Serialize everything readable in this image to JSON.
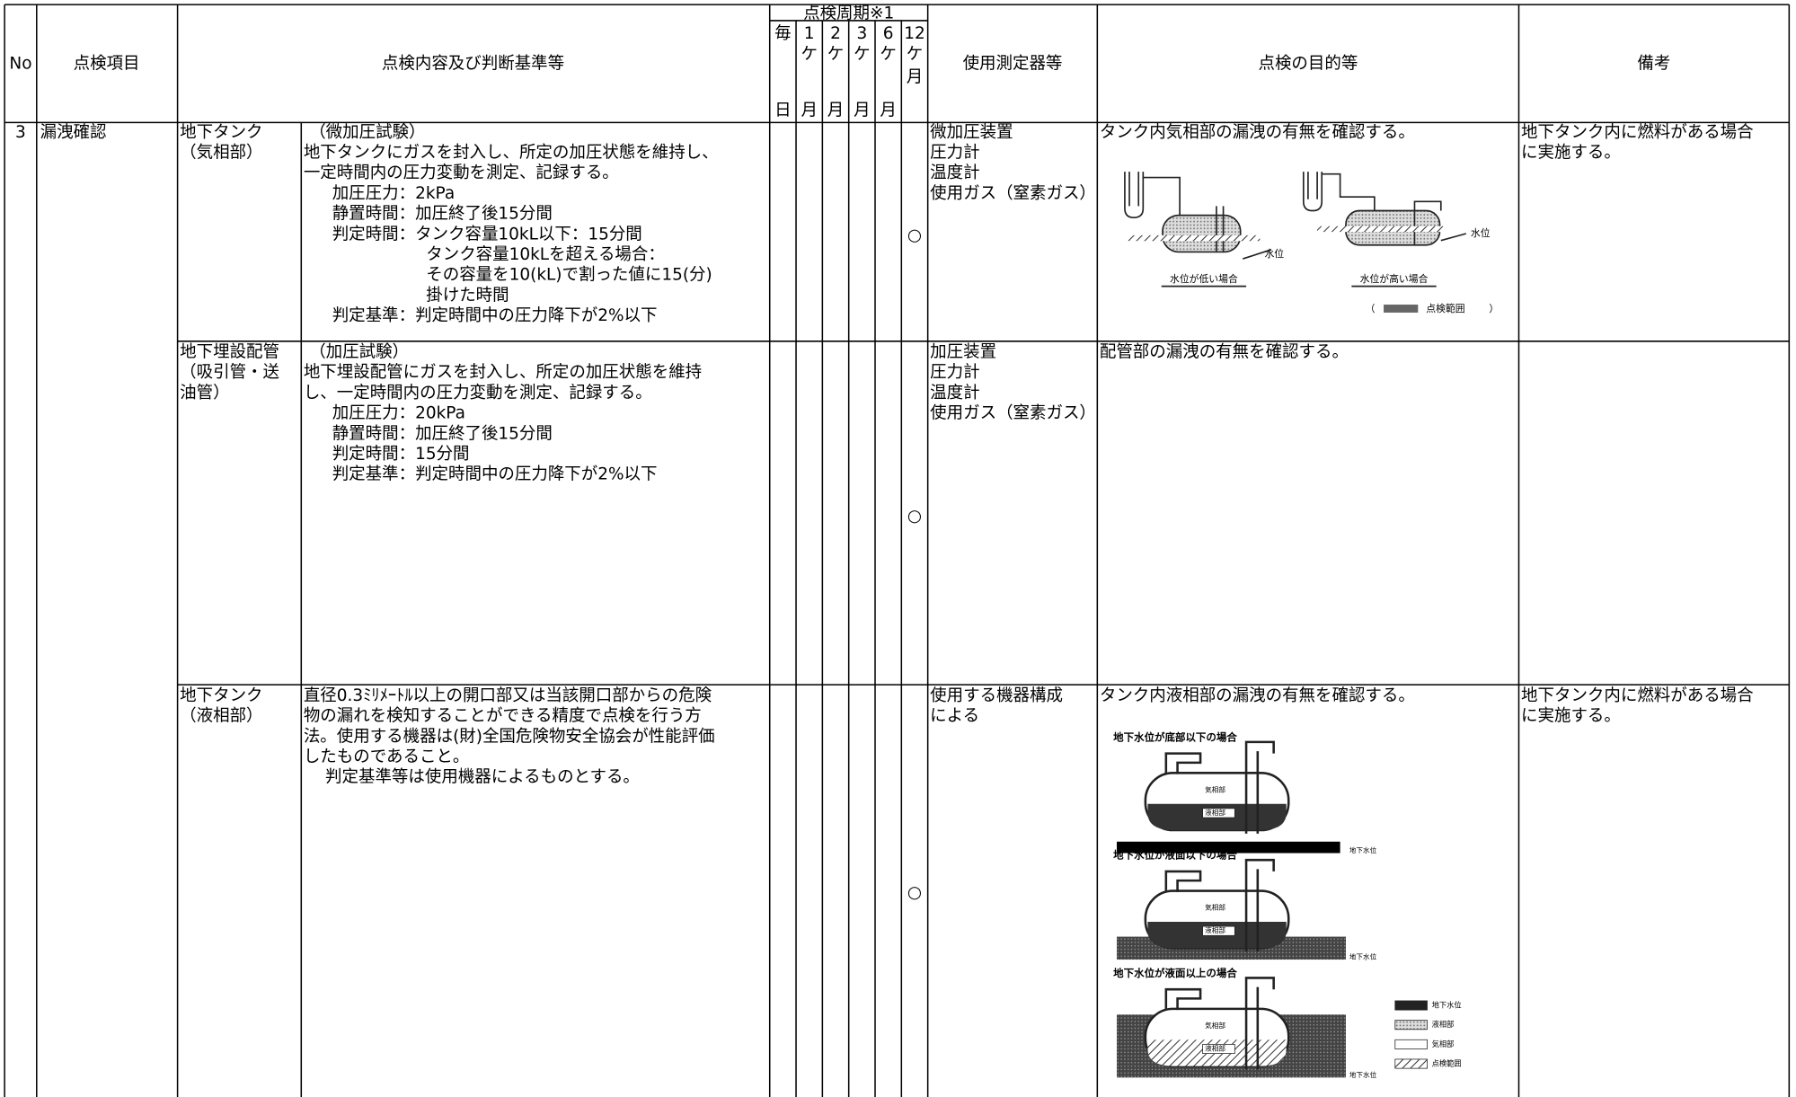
{
  "header": {
    "no": "No",
    "item": "点検項目",
    "content": "点検内容及び判断基準等",
    "cycle_title": "点検周期※1",
    "cycles": [
      [
        "毎",
        "日"
      ],
      [
        "1",
        "ケ",
        "月"
      ],
      [
        "2",
        "ケ",
        "月"
      ],
      [
        "3",
        "ケ",
        "月"
      ],
      [
        "6",
        "ケ",
        "月"
      ],
      [
        "12",
        "ケ",
        "月"
      ]
    ],
    "equipment": "使用測定器等",
    "purpose": "点検の目的等",
    "remarks": "備考"
  },
  "rows": [
    {
      "no": "3",
      "item": "漏洩確認",
      "subitem": [
        "地下タンク",
        "（気相部）"
      ],
      "content": [
        "（微加圧試験）",
        "地下タンクにガスを封入し、所定の加圧状態を維持し、",
        "一定時間内の圧力変動を測定、記録する。",
        "加圧圧力：2kPa",
        "静置時間：加圧終了後15分間",
        "判定時間：タンク容量10kL以下：15分間",
        "タンク容量10kLを超える場合：",
        "その容量を10(kL)で割った値に15(分)",
        "掛けた時間",
        "判定基準：判定時間中の圧力降下が2%以下"
      ],
      "cycle_mark": "○",
      "equipment": [
        "微加圧装置",
        "圧力計",
        "温度計",
        "使用ガス（窒素ガス）"
      ],
      "purpose": "タンク内気相部の漏洩の有無を確認する。",
      "remarks": [
        "地下タンク内に燃料がある場合",
        "に実施する。"
      ],
      "figure": {
        "water_level": "水位",
        "captions": [
          "水位が低い場合",
          "水位が高い場合"
        ],
        "legend": {
          "open": "（",
          "label": "点検範囲",
          "close": "）"
        }
      }
    },
    {
      "subitem": [
        "地下埋設配管",
        "（吸引管・送",
        "油管）"
      ],
      "content": [
        "（加圧試験）",
        "地下埋設配管にガスを封入し、所定の加圧状態を維持",
        "し、一定時間内の圧力変動を測定、記録する。",
        "加圧圧力：20kPa",
        "静置時間：加圧終了後15分間",
        "判定時間：15分間",
        "判定基準：判定時間中の圧力降下が2%以下"
      ],
      "cycle_mark": "○",
      "equipment": [
        "加圧装置",
        "圧力計",
        "温度計",
        "使用ガス（窒素ガス）"
      ],
      "purpose": "配管部の漏洩の有無を確認する。"
    },
    {
      "subitem": [
        "地下タンク",
        "（液相部）"
      ],
      "content": [
        "直径0.3ﾐﾘﾒｰﾄﾙ以上の開口部又は当該開口部からの危険",
        "物の漏れを検知することができる精度で点検を行う方",
        "法。使用する機器は(財)全国危険物安全協会が性能評価",
        "したものであること。",
        "判定基準等は使用機器によるものとする。"
      ],
      "cycle_mark": "○",
      "equipment": [
        "使用する機器構成",
        "による"
      ],
      "purpose": "タンク内液相部の漏洩の有無を確認する。",
      "remarks": [
        "地下タンク内に燃料がある場合",
        "に実施する。"
      ],
      "figure": {
        "headings": [
          "地下水位が底部以下の場合",
          "地下水位が液面以下の場合",
          "地下水位が液面以上の場合"
        ],
        "tank_labels": [
          "気相部",
          "液相部"
        ],
        "side_label": "地下水位",
        "legend": [
          "地下水位",
          "液相部",
          "気相部",
          "点検範囲"
        ]
      }
    }
  ]
}
